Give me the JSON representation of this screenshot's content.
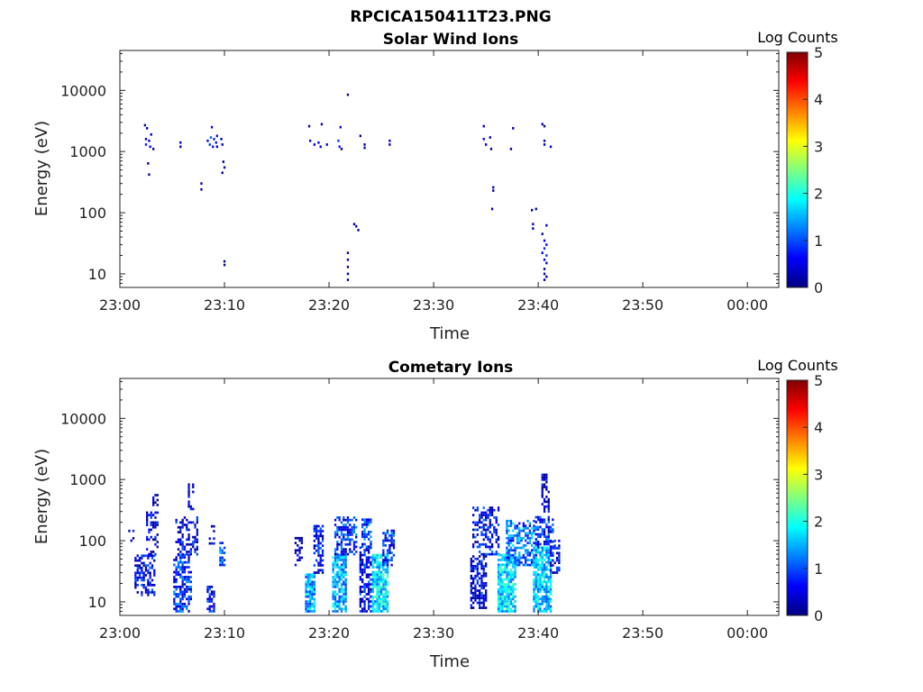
{
  "figure_title": "RPCICA150411T23.PNG",
  "chart_data": [
    {
      "type": "heatmap",
      "title": "Solar Wind Ions",
      "xlabel": "Time",
      "ylabel": "Energy (eV)",
      "yscale": "log",
      "ylim": [
        6,
        45000
      ],
      "xlim_minutes": [
        0,
        63
      ],
      "x_tick_labels": [
        "23:00",
        "23:10",
        "23:20",
        "23:30",
        "23:40",
        "23:50",
        "00:00"
      ],
      "x_tick_minutes": [
        0,
        10,
        20,
        30,
        40,
        50,
        60
      ],
      "y_tick_labels": [
        "10",
        "100",
        "1000",
        "10000"
      ],
      "y_tick_values": [
        10,
        100,
        1000,
        10000
      ],
      "colorbar": {
        "label": "Log Counts",
        "range": [
          0,
          5
        ],
        "tick_labels": [
          "0",
          "1",
          "2",
          "3",
          "4",
          "5"
        ],
        "tick_values": [
          0,
          1,
          2,
          3,
          4,
          5
        ],
        "colormap": "jet"
      },
      "cells": [
        [
          2.4,
          2700,
          0.2
        ],
        [
          2.6,
          2400,
          0.3
        ],
        [
          2.5,
          1600,
          0.5
        ],
        [
          2.5,
          1300,
          0.8
        ],
        [
          2.8,
          1500,
          0.4
        ],
        [
          2.9,
          1200,
          0.6
        ],
        [
          3.2,
          1100,
          0.2
        ],
        [
          2.7,
          640,
          0.2
        ],
        [
          2.8,
          420,
          0.2
        ],
        [
          3.0,
          1900,
          0.3
        ],
        [
          5.8,
          1400,
          0.4
        ],
        [
          5.8,
          1200,
          0.3
        ],
        [
          7.8,
          300,
          0.3
        ],
        [
          7.8,
          240,
          0.2
        ],
        [
          8.4,
          1500,
          0.6
        ],
        [
          8.6,
          1300,
          0.9
        ],
        [
          8.7,
          1700,
          1.1
        ],
        [
          8.9,
          1200,
          0.5
        ],
        [
          8.8,
          2500,
          0.4
        ],
        [
          9.0,
          1600,
          0.8
        ],
        [
          9.2,
          1400,
          0.7
        ],
        [
          9.3,
          1200,
          0.3
        ],
        [
          9.3,
          1800,
          0.5
        ],
        [
          9.7,
          1600,
          0.4
        ],
        [
          9.8,
          1300,
          0.3
        ],
        [
          9.9,
          680,
          0.2
        ],
        [
          10.0,
          550,
          0.2
        ],
        [
          9.8,
          450,
          0.2
        ],
        [
          10.0,
          16,
          0.2
        ],
        [
          10.0,
          14,
          0.2
        ],
        [
          18.1,
          2600,
          0.3
        ],
        [
          18.2,
          1500,
          0.5
        ],
        [
          18.6,
          1300,
          0.4
        ],
        [
          19.0,
          1400,
          0.6
        ],
        [
          19.2,
          1200,
          0.3
        ],
        [
          19.3,
          2800,
          0.2
        ],
        [
          19.8,
          1300,
          0.2
        ],
        [
          20.9,
          1500,
          0.9
        ],
        [
          21.0,
          1200,
          0.7
        ],
        [
          21.1,
          2500,
          0.4
        ],
        [
          21.2,
          1100,
          0.3
        ],
        [
          21.8,
          8500,
          0.2
        ],
        [
          21.8,
          22,
          0.2
        ],
        [
          21.8,
          17,
          0.2
        ],
        [
          21.8,
          13,
          0.2
        ],
        [
          21.8,
          10,
          0.2
        ],
        [
          21.8,
          8,
          0.2
        ],
        [
          22.4,
          65,
          0.2
        ],
        [
          22.6,
          60,
          0.2
        ],
        [
          22.8,
          52,
          0.2
        ],
        [
          23.0,
          1800,
          0.2
        ],
        [
          23.4,
          1300,
          0.3
        ],
        [
          23.4,
          1150,
          0.2
        ],
        [
          25.8,
          1500,
          0.4
        ],
        [
          25.8,
          1300,
          0.3
        ],
        [
          34.8,
          2600,
          0.2
        ],
        [
          34.8,
          1600,
          0.6
        ],
        [
          35.0,
          1300,
          0.5
        ],
        [
          35.4,
          1700,
          0.3
        ],
        [
          35.5,
          1100,
          0.2
        ],
        [
          35.7,
          260,
          0.2
        ],
        [
          35.7,
          230,
          0.2
        ],
        [
          35.6,
          115,
          0.2
        ],
        [
          37.4,
          1100,
          0.2
        ],
        [
          37.6,
          2400,
          0.2
        ],
        [
          39.4,
          110,
          0.2
        ],
        [
          39.8,
          115,
          0.2
        ],
        [
          39.5,
          65,
          0.3
        ],
        [
          39.5,
          55,
          0.2
        ],
        [
          40.4,
          2800,
          0.2
        ],
        [
          40.6,
          2600,
          0.3
        ],
        [
          40.6,
          1500,
          0.5
        ],
        [
          40.6,
          1300,
          0.3
        ],
        [
          41.2,
          1200,
          0.3
        ],
        [
          40.8,
          62,
          0.3
        ],
        [
          40.4,
          45,
          0.3
        ],
        [
          40.6,
          35,
          0.5
        ],
        [
          40.8,
          30,
          0.7
        ],
        [
          40.6,
          26,
          0.8
        ],
        [
          40.4,
          22,
          0.6
        ],
        [
          40.8,
          20,
          0.9
        ],
        [
          40.6,
          17,
          0.6
        ],
        [
          40.8,
          15,
          0.4
        ],
        [
          40.6,
          12,
          0.3
        ],
        [
          40.6,
          10,
          0.2
        ],
        [
          40.8,
          9,
          0.2
        ],
        [
          40.6,
          8,
          0.2
        ]
      ]
    },
    {
      "type": "heatmap",
      "title": "Cometary Ions",
      "xlabel": "Time",
      "ylabel": "Energy (eV)",
      "yscale": "log",
      "ylim": [
        6,
        45000
      ],
      "xlim_minutes": [
        0,
        63
      ],
      "x_tick_labels": [
        "23:00",
        "23:10",
        "23:20",
        "23:30",
        "23:40",
        "23:50",
        "00:00"
      ],
      "x_tick_minutes": [
        0,
        10,
        20,
        30,
        40,
        50,
        60
      ],
      "y_tick_labels": [
        "10",
        "100",
        "1000",
        "10000"
      ],
      "y_tick_values": [
        10,
        100,
        1000,
        10000
      ],
      "colorbar": {
        "label": "Log Counts",
        "range": [
          0,
          5
        ],
        "tick_labels": [
          "0",
          "1",
          "2",
          "3",
          "4",
          "5"
        ],
        "tick_values": [
          0,
          1,
          2,
          3,
          4,
          5
        ],
        "colormap": "jet"
      },
      "clusters": [
        {
          "x0": 0.9,
          "x1": 1.4,
          "e0": 100,
          "e1": 150,
          "mean": 0.3,
          "density": 0.5
        },
        {
          "x0": 1.5,
          "x1": 3.4,
          "e0": 13,
          "e1": 60,
          "mean": 0.6,
          "density": 0.55
        },
        {
          "x0": 2.6,
          "x1": 3.6,
          "e0": 60,
          "e1": 300,
          "mean": 0.4,
          "density": 0.4
        },
        {
          "x0": 3.2,
          "x1": 3.6,
          "e0": 350,
          "e1": 600,
          "mean": 0.2,
          "density": 0.5
        },
        {
          "x0": 5.2,
          "x1": 6.8,
          "e0": 7,
          "e1": 60,
          "mean": 0.8,
          "density": 0.6
        },
        {
          "x0": 5.4,
          "x1": 7.4,
          "e0": 60,
          "e1": 250,
          "mean": 0.5,
          "density": 0.45
        },
        {
          "x0": 6.6,
          "x1": 7.0,
          "e0": 300,
          "e1": 900,
          "mean": 0.3,
          "density": 0.4
        },
        {
          "x0": 8.4,
          "x1": 9.0,
          "e0": 7,
          "e1": 18,
          "mean": 0.7,
          "density": 0.7
        },
        {
          "x0": 8.6,
          "x1": 9.0,
          "e0": 90,
          "e1": 200,
          "mean": 0.3,
          "density": 0.4
        },
        {
          "x0": 9.6,
          "x1": 10.1,
          "e0": 40,
          "e1": 100,
          "mean": 1.1,
          "density": 0.6
        },
        {
          "x0": 16.8,
          "x1": 17.4,
          "e0": 40,
          "e1": 120,
          "mean": 0.3,
          "density": 0.5
        },
        {
          "x0": 17.8,
          "x1": 18.6,
          "e0": 7,
          "e1": 30,
          "mean": 1.4,
          "density": 0.8
        },
        {
          "x0": 18.6,
          "x1": 19.4,
          "e0": 30,
          "e1": 200,
          "mean": 0.6,
          "density": 0.5
        },
        {
          "x0": 20.4,
          "x1": 21.6,
          "e0": 7,
          "e1": 60,
          "mean": 1.5,
          "density": 0.8
        },
        {
          "x0": 20.6,
          "x1": 22.6,
          "e0": 60,
          "e1": 260,
          "mean": 0.8,
          "density": 0.6
        },
        {
          "x0": 23.0,
          "x1": 24.0,
          "e0": 7,
          "e1": 80,
          "mean": 0.6,
          "density": 0.65
        },
        {
          "x0": 23.2,
          "x1": 24.2,
          "e0": 80,
          "e1": 250,
          "mean": 0.9,
          "density": 0.5
        },
        {
          "x0": 24.2,
          "x1": 25.6,
          "e0": 7,
          "e1": 60,
          "mean": 1.7,
          "density": 0.8
        },
        {
          "x0": 25.2,
          "x1": 26.2,
          "e0": 40,
          "e1": 150,
          "mean": 0.9,
          "density": 0.6
        },
        {
          "x0": 33.6,
          "x1": 35.0,
          "e0": 8,
          "e1": 60,
          "mean": 0.5,
          "density": 0.6
        },
        {
          "x0": 33.8,
          "x1": 36.2,
          "e0": 60,
          "e1": 350,
          "mean": 0.6,
          "density": 0.45
        },
        {
          "x0": 36.2,
          "x1": 37.8,
          "e0": 7,
          "e1": 60,
          "mean": 1.7,
          "density": 0.8
        },
        {
          "x0": 37.0,
          "x1": 39.8,
          "e0": 40,
          "e1": 220,
          "mean": 1.2,
          "density": 0.6
        },
        {
          "x0": 39.6,
          "x1": 41.2,
          "e0": 7,
          "e1": 80,
          "mean": 1.6,
          "density": 0.8
        },
        {
          "x0": 39.8,
          "x1": 41.4,
          "e0": 80,
          "e1": 250,
          "mean": 0.8,
          "density": 0.55
        },
        {
          "x0": 40.4,
          "x1": 41.0,
          "e0": 300,
          "e1": 1200,
          "mean": 0.3,
          "density": 0.5
        },
        {
          "x0": 41.2,
          "x1": 42.0,
          "e0": 30,
          "e1": 100,
          "mean": 0.5,
          "density": 0.6
        }
      ]
    }
  ]
}
